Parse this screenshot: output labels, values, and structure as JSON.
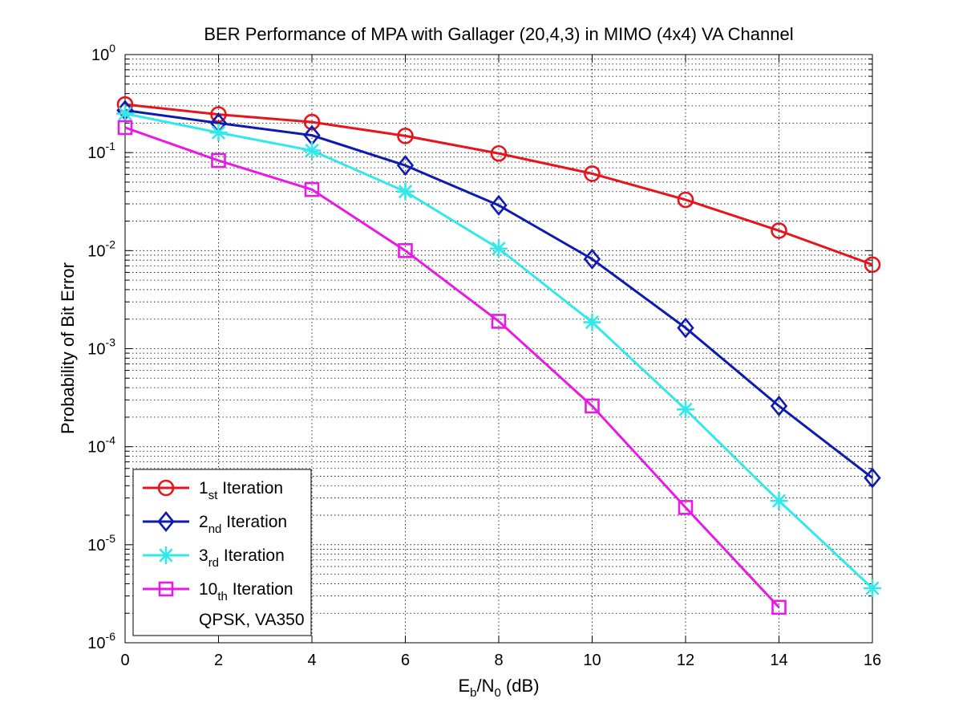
{
  "chart_data": {
    "type": "line",
    "title": "BER Performance of MPA with Gallager (20,4,3) in MIMO (4x4) VA Channel",
    "xlabel": {
      "main": "E",
      "sub": "b",
      "mid": "/N",
      "sub2": "0",
      "tail": " (dB)"
    },
    "ylabel": "Probability of Bit Error",
    "xlim": [
      0,
      16
    ],
    "ylim": [
      1e-06,
      1
    ],
    "yscale": "log",
    "grid": true,
    "x_ticks": [
      "0",
      "2",
      "4",
      "6",
      "8",
      "10",
      "12",
      "14",
      "16"
    ],
    "y_ticks": [
      {
        "base": "10",
        "exp": "0"
      },
      {
        "base": "10",
        "exp": "-1"
      },
      {
        "base": "10",
        "exp": "-2"
      },
      {
        "base": "10",
        "exp": "-3"
      },
      {
        "base": "10",
        "exp": "-4"
      },
      {
        "base": "10",
        "exp": "-5"
      },
      {
        "base": "10",
        "exp": "-6"
      }
    ],
    "legend_position": "bottom-left",
    "legend_note": "QPSK, VA350",
    "series": [
      {
        "name": {
          "main": "1",
          "sub": "st",
          "tail": " Iteration"
        },
        "color": "#e8141b",
        "marker": "circle",
        "x": [
          0,
          2,
          4,
          6,
          8,
          10,
          12,
          14,
          16
        ],
        "y": [
          0.31,
          0.245,
          0.205,
          0.148,
          0.098,
          0.061,
          0.033,
          0.016,
          0.0072
        ]
      },
      {
        "name": {
          "main": "2",
          "sub": "nd",
          "tail": " Iteration"
        },
        "color": "#0f1ab0",
        "marker": "diamond",
        "x": [
          0,
          2,
          4,
          6,
          8,
          10,
          12,
          14,
          16
        ],
        "y": [
          0.27,
          0.2,
          0.15,
          0.074,
          0.029,
          0.0082,
          0.00163,
          0.00026,
          4.8e-05
        ]
      },
      {
        "name": {
          "main": "3",
          "sub": "rd",
          "tail": " Iteration"
        },
        "color": "#33e8e8",
        "marker": "asterisk",
        "x": [
          0,
          2,
          4,
          6,
          8,
          10,
          12,
          14,
          16
        ],
        "y": [
          0.25,
          0.16,
          0.105,
          0.04,
          0.0105,
          0.00186,
          0.00024,
          2.8e-05,
          3.6e-06
        ]
      },
      {
        "name": {
          "main": "10",
          "sub": "th",
          "tail": " Iteration"
        },
        "color": "#e81ae8",
        "marker": "square",
        "x": [
          0,
          2,
          4,
          6,
          8,
          10,
          12,
          14
        ],
        "y": [
          0.18,
          0.083,
          0.042,
          0.01,
          0.0019,
          0.00026,
          2.4e-05,
          2.3e-06
        ]
      }
    ]
  }
}
